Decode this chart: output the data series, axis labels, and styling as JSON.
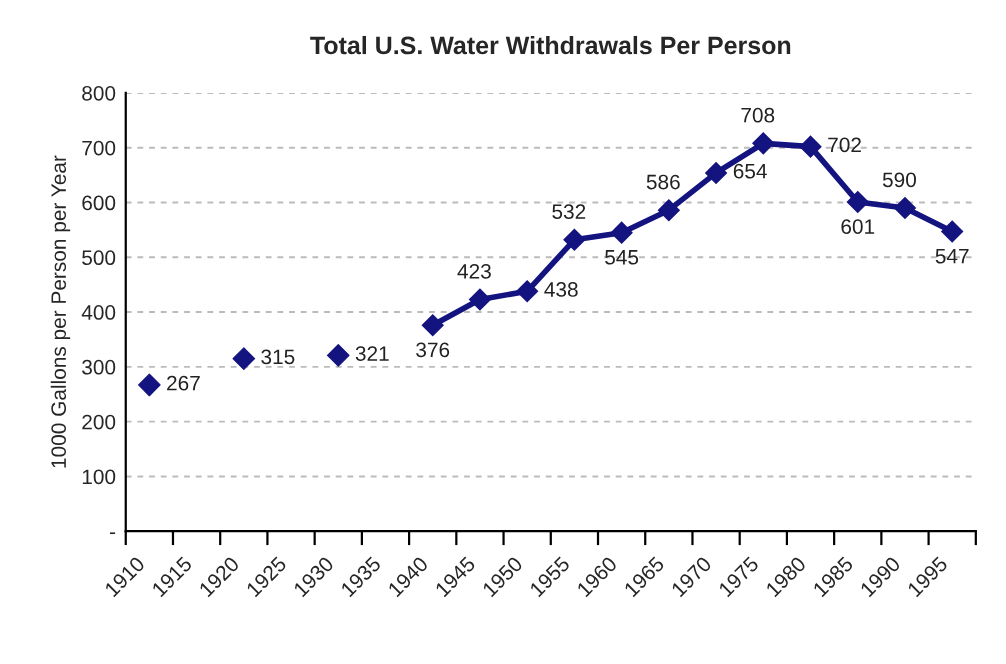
{
  "chart_data": {
    "type": "line",
    "title": "Total U.S. Water Withdrawals Per Person",
    "ylabel": "1000 Gallons per Person per Year",
    "series": [
      {
        "type": "scatter",
        "color": "#141480",
        "x": [
          1912.5,
          1922.5,
          1932.5
        ],
        "values": [
          267,
          315,
          321
        ]
      },
      {
        "color": "#141480",
        "x": [
          1942.5,
          1947.5,
          1952.5,
          1957.5,
          1962.5,
          1967.5,
          1972.5,
          1977.5,
          1982.5,
          1987.5,
          1992.5,
          1997.5
        ],
        "values": [
          376,
          423,
          438,
          532,
          545,
          586,
          654,
          708,
          702,
          601,
          590,
          547
        ]
      }
    ],
    "xlim": [
      1910,
      2000
    ],
    "xticks": [
      1910,
      1915,
      1920,
      1925,
      1930,
      1935,
      1940,
      1945,
      1950,
      1955,
      1960,
      1965,
      1970,
      1975,
      1980,
      1985,
      1990,
      1995,
      {
        "value": 2000,
        "label": null
      }
    ],
    "ylim": [
      0,
      800
    ],
    "yticks": [
      {
        "value": 0,
        "label": "-"
      },
      100,
      200,
      300,
      400,
      500,
      600,
      700,
      800
    ],
    "grid": "y",
    "marker": "diamond",
    "line_style": "solid",
    "data_labels": true,
    "legend": false
  }
}
